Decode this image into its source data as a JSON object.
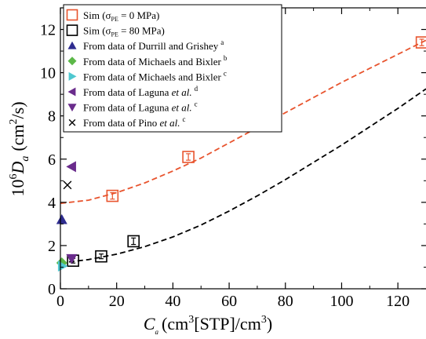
{
  "chart_data": {
    "type": "scatter",
    "xlabel": {
      "main": "C",
      "sub": "a",
      "unit": "(cm",
      "unit_sup": "3",
      "unit_mid": "[STP]/cm",
      "unit_sup2": "3",
      "unit_end": ")"
    },
    "ylabel": {
      "prefix": "10",
      "prefix_sup": "6",
      "main": "D",
      "sub": "a",
      "unit": "(cm",
      "unit_sup": "2",
      "unit_end": "/s)"
    },
    "xlim": [
      0,
      130
    ],
    "ylim": [
      0,
      13
    ],
    "xticks": [
      0,
      20,
      40,
      60,
      80,
      100,
      120
    ],
    "yticks": [
      0,
      2,
      4,
      6,
      8,
      10,
      12
    ],
    "colors": {
      "sim0": "#e8542e",
      "sim80": "#000000",
      "durrill": "#2e2c8f",
      "michaels_b": "#5cb848",
      "michaels_c": "#4fc8d0",
      "laguna_d": "#6a2c8c",
      "laguna_c": "#6a2c8c",
      "pino": "#000000"
    },
    "legend": [
      {
        "key": "sim0",
        "marker": "open-square",
        "text": "Sim (σ",
        "sub": "PE",
        "text2": " = 0 MPa)",
        "sup": "",
        "italic": ""
      },
      {
        "key": "sim80",
        "marker": "open-square",
        "text": "Sim (σ",
        "sub": "PE",
        "text2": " = 80 MPa)",
        "sup": "",
        "italic": ""
      },
      {
        "key": "durrill",
        "marker": "triangle-up",
        "text": "From data of Durrill and Grishey",
        "sub": "",
        "text2": "",
        "sup": "a",
        "italic": ""
      },
      {
        "key": "michaels_b",
        "marker": "diamond",
        "text": "From data of Michaels and Bixler",
        "sub": "",
        "text2": "",
        "sup": "b",
        "italic": ""
      },
      {
        "key": "michaels_c",
        "marker": "triangle-right",
        "text": "From data of Michaels and Bixler",
        "sub": "",
        "text2": "",
        "sup": "c",
        "italic": ""
      },
      {
        "key": "laguna_d",
        "marker": "triangle-left",
        "text": "From data of Laguna ",
        "sub": "",
        "text2": "",
        "sup": "d",
        "italic": "et al."
      },
      {
        "key": "laguna_c",
        "marker": "triangle-down",
        "text": "From data of Laguna ",
        "sub": "",
        "text2": "",
        "sup": "c",
        "italic": "et al."
      },
      {
        "key": "pino",
        "marker": "cross",
        "text": "From data of Pino ",
        "sub": "",
        "text2": "",
        "sup": "c",
        "italic": "et al."
      }
    ],
    "series": [
      {
        "key": "sim0",
        "marker": "open-square",
        "points": [
          [
            18.5,
            4.3,
            0.15
          ],
          [
            45.5,
            6.1,
            0.15
          ],
          [
            128.5,
            11.4,
            0.15
          ]
        ]
      },
      {
        "key": "sim80",
        "marker": "open-square",
        "points": [
          [
            4.5,
            1.3,
            0.05
          ],
          [
            14.5,
            1.5,
            0.05
          ],
          [
            26,
            2.2,
            0.15
          ]
        ]
      },
      {
        "key": "durrill",
        "marker": "triangle-up",
        "points": [
          [
            0.5,
            3.2
          ]
        ]
      },
      {
        "key": "michaels_b",
        "marker": "diamond",
        "points": [
          [
            0.5,
            1.2
          ]
        ]
      },
      {
        "key": "michaels_c",
        "marker": "triangle-right",
        "points": [
          [
            0.7,
            1.05
          ]
        ]
      },
      {
        "key": "laguna_d",
        "marker": "triangle-left",
        "points": [
          [
            4,
            5.65
          ]
        ]
      },
      {
        "key": "laguna_c",
        "marker": "triangle-down",
        "points": [
          [
            4,
            1.4
          ]
        ]
      },
      {
        "key": "pino",
        "marker": "cross",
        "points": [
          [
            2.5,
            4.8
          ]
        ]
      }
    ],
    "fits": [
      {
        "key": "sim0",
        "style": "dashed",
        "points": [
          [
            0,
            3.95
          ],
          [
            10,
            4.1
          ],
          [
            20,
            4.45
          ],
          [
            30,
            4.9
          ],
          [
            40,
            5.45
          ],
          [
            50,
            6.05
          ],
          [
            60,
            6.75
          ],
          [
            70,
            7.45
          ],
          [
            80,
            8.15
          ],
          [
            90,
            8.85
          ],
          [
            100,
            9.55
          ],
          [
            110,
            10.2
          ],
          [
            120,
            10.85
          ],
          [
            130,
            11.5
          ]
        ]
      },
      {
        "key": "sim80",
        "style": "dashed",
        "points": [
          [
            0,
            1.2
          ],
          [
            10,
            1.35
          ],
          [
            20,
            1.6
          ],
          [
            30,
            1.95
          ],
          [
            40,
            2.4
          ],
          [
            50,
            2.95
          ],
          [
            60,
            3.6
          ],
          [
            70,
            4.3
          ],
          [
            80,
            5.05
          ],
          [
            90,
            5.85
          ],
          [
            100,
            6.65
          ],
          [
            110,
            7.5
          ],
          [
            120,
            8.35
          ],
          [
            130,
            9.25
          ]
        ]
      }
    ]
  }
}
